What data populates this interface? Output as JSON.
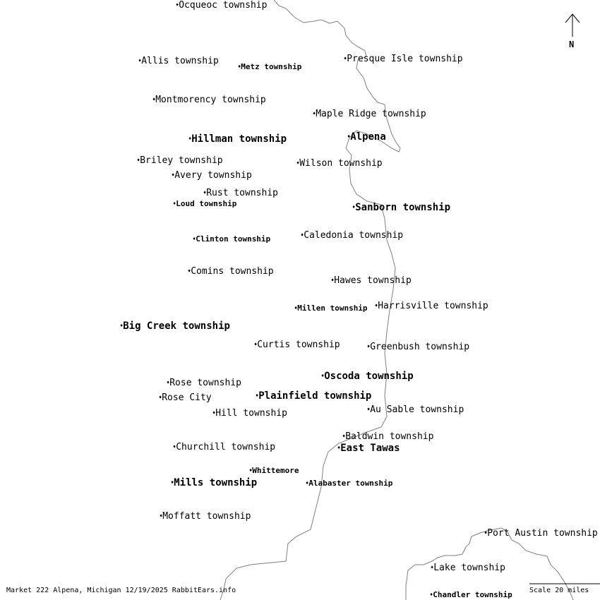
{
  "places": [
    {
      "name": "Ocqueoc township",
      "style": "regular"
    },
    {
      "name": "Allis township",
      "style": "regular"
    },
    {
      "name": "Metz township",
      "style": "minor"
    },
    {
      "name": "Presque Isle township",
      "style": "regular"
    },
    {
      "name": "Montmorency township",
      "style": "regular"
    },
    {
      "name": "Maple Ridge township",
      "style": "regular"
    },
    {
      "name": "Hillman township",
      "style": "major"
    },
    {
      "name": "Alpena",
      "style": "major"
    },
    {
      "name": "Briley township",
      "style": "regular"
    },
    {
      "name": "Wilson township",
      "style": "regular"
    },
    {
      "name": "Avery township",
      "style": "regular"
    },
    {
      "name": "Rust township",
      "style": "regular"
    },
    {
      "name": "Loud township",
      "style": "minor"
    },
    {
      "name": "Sanborn township",
      "style": "major"
    },
    {
      "name": "Clinton township",
      "style": "minor"
    },
    {
      "name": "Caledonia township",
      "style": "regular"
    },
    {
      "name": "Comins township",
      "style": "regular"
    },
    {
      "name": "Hawes township",
      "style": "regular"
    },
    {
      "name": "Millen township",
      "style": "minor"
    },
    {
      "name": "Harrisville township",
      "style": "regular"
    },
    {
      "name": "Big Creek township",
      "style": "major"
    },
    {
      "name": "Curtis township",
      "style": "regular"
    },
    {
      "name": "Greenbush township",
      "style": "regular"
    },
    {
      "name": "Oscoda township",
      "style": "major"
    },
    {
      "name": "Rose township",
      "style": "regular"
    },
    {
      "name": "Plainfield township",
      "style": "major"
    },
    {
      "name": "Rose City",
      "style": "regular"
    },
    {
      "name": "Hill township",
      "style": "regular"
    },
    {
      "name": "Au Sable township",
      "style": "regular"
    },
    {
      "name": "Baldwin township",
      "style": "regular"
    },
    {
      "name": "East Tawas",
      "style": "major"
    },
    {
      "name": "Churchill township",
      "style": "regular"
    },
    {
      "name": "Whittemore",
      "style": "minor"
    },
    {
      "name": "Mills township",
      "style": "major"
    },
    {
      "name": "Alabaster township",
      "style": "minor"
    },
    {
      "name": "Moffatt township",
      "style": "regular"
    },
    {
      "name": "Port Austin township",
      "style": "regular"
    },
    {
      "name": "Lake township",
      "style": "regular"
    },
    {
      "name": "Chandler township",
      "style": "minor"
    }
  ],
  "north_label": "N",
  "scale_label": "Scale 20 miles",
  "footer": "Market 222 Alpena, Michigan 12/19/2025 RabbitEars.info",
  "colors": {
    "coastline": "#808080",
    "text": "#000000",
    "background": "#ffffff"
  }
}
